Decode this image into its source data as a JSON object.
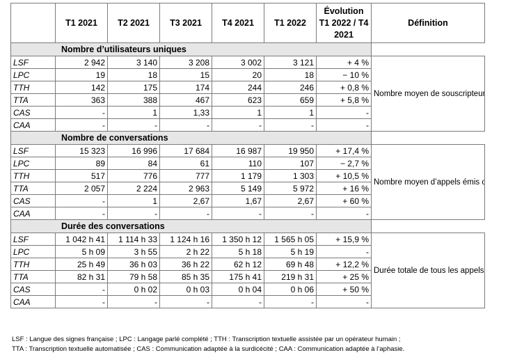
{
  "headers": [
    "",
    "T1 2021",
    "T2 2021",
    "T3 2021",
    "T4 2021",
    "T1 2022",
    "Évolution T1 2022 / T4 2021",
    "Définition"
  ],
  "sections": [
    {
      "title": "Nombre d’utilisateurs uniques",
      "definition": "Nombre moyen de souscripteurs ayant utilisé le service au cours d’un mois, c’est-à-dire ceux ayant émis ou reçu un appel.",
      "rows": [
        {
          "label": "LSF",
          "values": [
            "2 942",
            "3 140",
            "3 208",
            "3 002",
            "3 121"
          ],
          "evo": "+ 4 %"
        },
        {
          "label": "LPC",
          "values": [
            "19",
            "18",
            "15",
            "20",
            "18"
          ],
          "evo": "− 10 %"
        },
        {
          "label": "TTH",
          "values": [
            "142",
            "175",
            "174",
            "244",
            "246"
          ],
          "evo": "+ 0,8 %"
        },
        {
          "label": "TTA",
          "values": [
            "363",
            "388",
            "467",
            "623",
            "659"
          ],
          "evo": "+ 5,8 %"
        },
        {
          "label": "CAS",
          "values": [
            "-",
            "1",
            "1,33",
            "1",
            "1"
          ],
          "evo": "-"
        },
        {
          "label": "CAA",
          "values": [
            "-",
            "-",
            "-",
            "-",
            "-"
          ],
          "evo": "-"
        }
      ]
    },
    {
      "title": "Nombre de conversations",
      "definition": "Nombre moyen d’appels émis ou reçus par l’ensemble des utilisateurs au cours d’un mois.",
      "rows": [
        {
          "label": "LSF",
          "values": [
            "15 323",
            "16 996",
            "17 684",
            "16 987",
            "19 950"
          ],
          "evo": "+ 17,4 %"
        },
        {
          "label": "LPC",
          "values": [
            "89",
            "84",
            "61",
            "110",
            "107"
          ],
          "evo": "− 2,7 %"
        },
        {
          "label": "TTH",
          "values": [
            "517",
            "776",
            "777",
            "1 179",
            "1 303"
          ],
          "evo": "+ 10,5 %"
        },
        {
          "label": "TTA",
          "values": [
            "2 057",
            "2 224",
            "2 963",
            "5 149",
            "5 972"
          ],
          "evo": "+ 16 %"
        },
        {
          "label": "CAS",
          "values": [
            "-",
            "1",
            "2,67",
            "1,67",
            "2,67"
          ],
          "evo": "+ 60 %"
        },
        {
          "label": "CAA",
          "values": [
            "-",
            "-",
            "-",
            "-",
            "-"
          ],
          "evo": "-"
        }
      ]
    },
    {
      "title": "Durée des conversations",
      "definition": "Durée totale de tous les appels émis ou reçus au cours d’un mois.",
      "rows": [
        {
          "label": "LSF",
          "values": [
            "1 042 h 41",
            "1 114 h 33",
            "1 124 h 16",
            "1 350 h 12",
            "1 565 h 05"
          ],
          "evo": "+ 15,9 %"
        },
        {
          "label": "LPC",
          "values": [
            "5 h 09",
            "3 h 55",
            "2 h 22",
            "5 h 18",
            "5 h 19"
          ],
          "evo": "-"
        },
        {
          "label": "TTH",
          "values": [
            "25 h 49",
            "36 h 03",
            "36 h 22",
            "62 h 12",
            "69 h 48"
          ],
          "evo": "+ 12,2 %"
        },
        {
          "label": "TTA",
          "values": [
            "82 h 31",
            "79 h 58",
            "85 h 35",
            "175 h 41",
            "219 h 31"
          ],
          "evo": "+ 25 %"
        },
        {
          "label": "CAS",
          "values": [
            "-",
            "0 h 02",
            "0 h 03",
            "0 h 04",
            "0 h 06"
          ],
          "evo": "+ 50 %"
        },
        {
          "label": "CAA",
          "values": [
            "-",
            "-",
            "-",
            "-",
            "-"
          ],
          "evo": "-"
        }
      ]
    }
  ],
  "footnotes": [
    "LSF : Langue des signes française ; LPC : Langage parlé complété ; TTH : Transcription textuelle assistée par un opérateur humain ;",
    "TTA : Transcription textuelle automatisée ; CAS : Communication adaptée à la surdicécité ; CAA : Communication adaptée à l’aphasie."
  ]
}
